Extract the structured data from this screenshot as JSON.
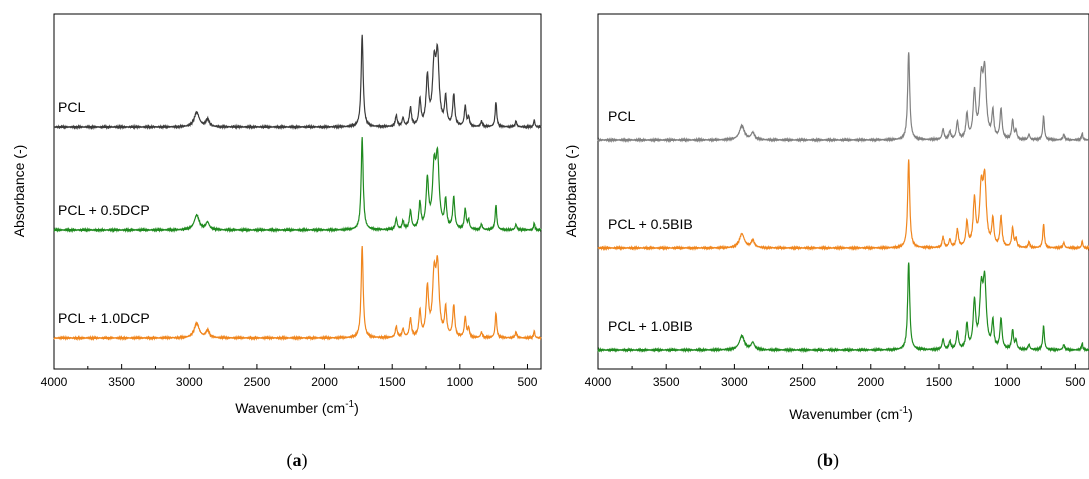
{
  "chart_data": [
    {
      "type": "line",
      "panel_label": "a",
      "xlabel_main": "Wavenumber (cm",
      "xlabel_sup": "-1",
      "xlabel_end": ")",
      "ylabel": "Absorbance (-)",
      "xlim": [
        4000,
        400
      ],
      "x_reversed": true,
      "y_ticks_shown": false,
      "x_ticks": [
        4000,
        3500,
        3000,
        2500,
        2000,
        1500,
        1000,
        500
      ],
      "series": [
        {
          "name": "PCL + 1.0DCP",
          "color": "#f0861e",
          "offset": 2,
          "scale": 1.0
        },
        {
          "name": "PCL + 0.5DCP",
          "color": "#1f8a1f",
          "offset": 1,
          "scale": 1.0
        },
        {
          "name": "PCL",
          "color": "#3b3b3b",
          "offset": 0,
          "scale": 1.0
        }
      ]
    },
    {
      "type": "line",
      "panel_label": "b",
      "xlabel_main": "Wavenumber (cm",
      "xlabel_sup": "-1",
      "xlabel_end": ")",
      "ylabel": "Absorbance (-)",
      "xlim": [
        4000,
        400
      ],
      "x_reversed": true,
      "y_ticks_shown": false,
      "x_ticks": [
        4000,
        3500,
        3000,
        2500,
        2000,
        1500,
        1000,
        500
      ],
      "series": [
        {
          "name": "PCL + 1.0BIB",
          "color": "#1f8a1f",
          "offset": 2,
          "scale": 1.0
        },
        {
          "name": "PCL + 0.5BIB",
          "color": "#f0861e",
          "offset": 1,
          "scale": 1.0
        },
        {
          "name": "PCL",
          "color": "#808080",
          "offset": 0,
          "scale": 1.0
        }
      ]
    }
  ],
  "peaks": [
    {
      "x": 2945,
      "h": 0.16,
      "w": 22
    },
    {
      "x": 2865,
      "h": 0.08,
      "w": 15
    },
    {
      "x": 1722,
      "h": 1.0,
      "w": 9
    },
    {
      "x": 1470,
      "h": 0.12,
      "w": 8
    },
    {
      "x": 1420,
      "h": 0.09,
      "w": 8
    },
    {
      "x": 1365,
      "h": 0.2,
      "w": 9
    },
    {
      "x": 1295,
      "h": 0.28,
      "w": 9
    },
    {
      "x": 1240,
      "h": 0.52,
      "w": 11
    },
    {
      "x": 1190,
      "h": 0.62,
      "w": 14
    },
    {
      "x": 1165,
      "h": 0.72,
      "w": 14
    },
    {
      "x": 1105,
      "h": 0.3,
      "w": 9
    },
    {
      "x": 1045,
      "h": 0.34,
      "w": 9
    },
    {
      "x": 960,
      "h": 0.22,
      "w": 8
    },
    {
      "x": 935,
      "h": 0.1,
      "w": 7
    },
    {
      "x": 840,
      "h": 0.06,
      "w": 7
    },
    {
      "x": 733,
      "h": 0.27,
      "w": 7
    },
    {
      "x": 585,
      "h": 0.06,
      "w": 7
    },
    {
      "x": 450,
      "h": 0.08,
      "w": 5
    }
  ]
}
